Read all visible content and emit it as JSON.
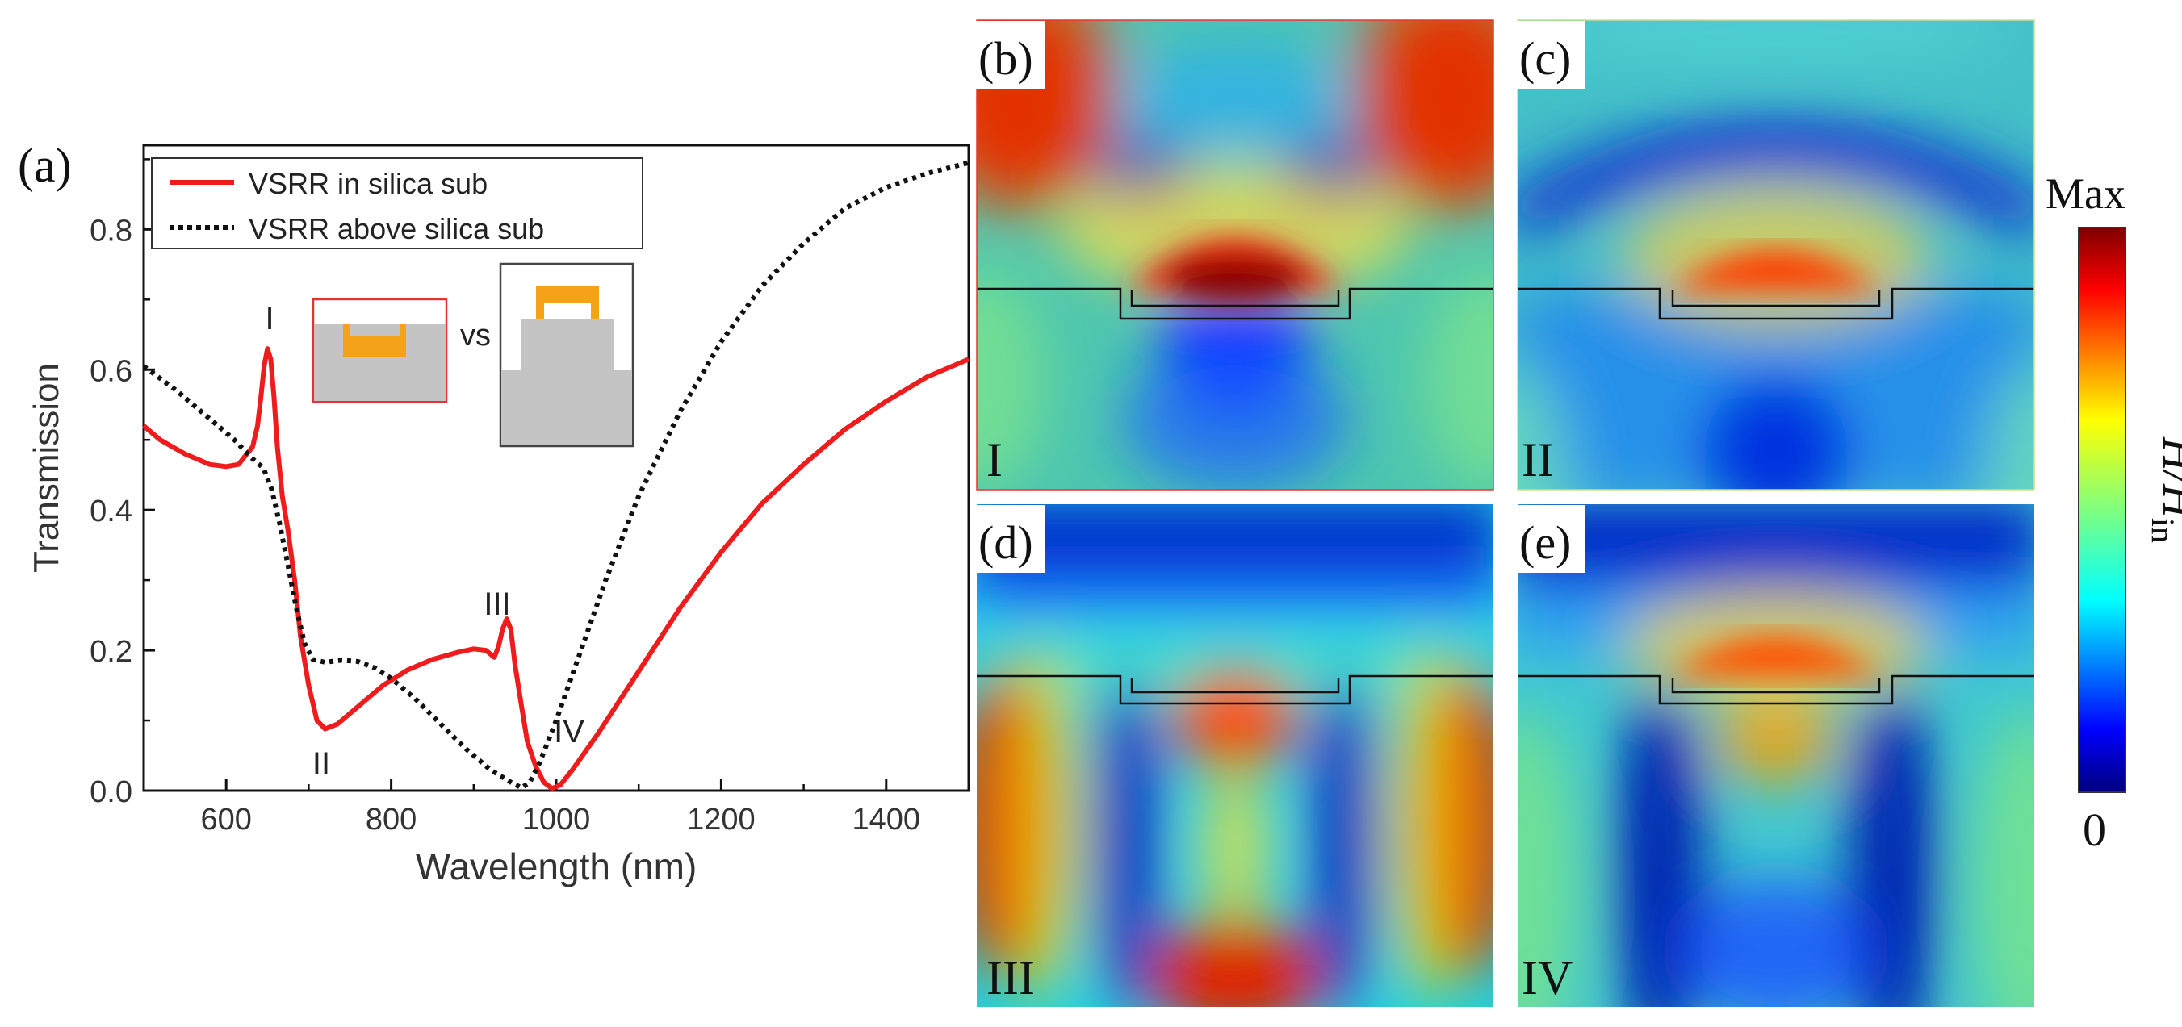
{
  "chart_data": [
    {
      "panel": "(a)",
      "type": "line",
      "xlabel": "Wavelength (nm)",
      "ylabel": "Transmission",
      "xlim": [
        500,
        1500
      ],
      "ylim": [
        0,
        0.92
      ],
      "xticks": [
        "600",
        "800",
        "1000",
        "1200",
        "1400"
      ],
      "yticks": [
        "0.0",
        "0.2",
        "0.4",
        "0.6",
        "0.8"
      ],
      "legend_position": "top",
      "series": [
        {
          "name": "VSRR in silica sub",
          "color": "#ee1c1c",
          "style": "solid",
          "points": [
            [
              500,
              0.52
            ],
            [
              520,
              0.5
            ],
            [
              550,
              0.48
            ],
            [
              580,
              0.465
            ],
            [
              600,
              0.462
            ],
            [
              615,
              0.465
            ],
            [
              625,
              0.48
            ],
            [
              632,
              0.49
            ],
            [
              638,
              0.52
            ],
            [
              642,
              0.56
            ],
            [
              646,
              0.605
            ],
            [
              650,
              0.63
            ],
            [
              654,
              0.615
            ],
            [
              658,
              0.56
            ],
            [
              662,
              0.49
            ],
            [
              668,
              0.42
            ],
            [
              675,
              0.37
            ],
            [
              683,
              0.3
            ],
            [
              690,
              0.22
            ],
            [
              700,
              0.15
            ],
            [
              710,
              0.1
            ],
            [
              720,
              0.088
            ],
            [
              735,
              0.095
            ],
            [
              760,
              0.12
            ],
            [
              790,
              0.15
            ],
            [
              820,
              0.172
            ],
            [
              850,
              0.187
            ],
            [
              880,
              0.197
            ],
            [
              900,
              0.202
            ],
            [
              915,
              0.2
            ],
            [
              925,
              0.19
            ],
            [
              930,
              0.205
            ],
            [
              935,
              0.23
            ],
            [
              940,
              0.245
            ],
            [
              945,
              0.23
            ],
            [
              950,
              0.18
            ],
            [
              958,
              0.12
            ],
            [
              965,
              0.07
            ],
            [
              975,
              0.035
            ],
            [
              985,
              0.012
            ],
            [
              995,
              0.003
            ],
            [
              1005,
              0.008
            ],
            [
              1020,
              0.03
            ],
            [
              1050,
              0.08
            ],
            [
              1100,
              0.17
            ],
            [
              1150,
              0.26
            ],
            [
              1200,
              0.34
            ],
            [
              1250,
              0.41
            ],
            [
              1300,
              0.465
            ],
            [
              1350,
              0.515
            ],
            [
              1400,
              0.555
            ],
            [
              1450,
              0.59
            ],
            [
              1500,
              0.615
            ]
          ]
        },
        {
          "name": "VSRR above silica sub",
          "color": "#111111",
          "style": "dotted",
          "points": [
            [
              500,
              0.605
            ],
            [
              540,
              0.57
            ],
            [
              580,
              0.53
            ],
            [
              610,
              0.5
            ],
            [
              630,
              0.475
            ],
            [
              645,
              0.46
            ],
            [
              655,
              0.43
            ],
            [
              665,
              0.38
            ],
            [
              675,
              0.32
            ],
            [
              685,
              0.26
            ],
            [
              695,
              0.21
            ],
            [
              705,
              0.187
            ],
            [
              720,
              0.183
            ],
            [
              740,
              0.186
            ],
            [
              760,
              0.184
            ],
            [
              780,
              0.175
            ],
            [
              800,
              0.16
            ],
            [
              830,
              0.13
            ],
            [
              860,
              0.095
            ],
            [
              890,
              0.06
            ],
            [
              920,
              0.03
            ],
            [
              945,
              0.012
            ],
            [
              958,
              0.004
            ],
            [
              968,
              0.012
            ],
            [
              980,
              0.04
            ],
            [
              1000,
              0.1
            ],
            [
              1030,
              0.2
            ],
            [
              1060,
              0.3
            ],
            [
              1100,
              0.42
            ],
            [
              1150,
              0.54
            ],
            [
              1200,
              0.64
            ],
            [
              1250,
              0.72
            ],
            [
              1300,
              0.78
            ],
            [
              1350,
              0.83
            ],
            [
              1400,
              0.86
            ],
            [
              1450,
              0.88
            ],
            [
              1500,
              0.895
            ]
          ]
        }
      ],
      "annotations": [
        "I",
        "II",
        "III",
        "IV"
      ],
      "inset_text": "vs"
    },
    {
      "panel": "(b)",
      "type": "heatmap",
      "mode_label": "I",
      "description_colormap": "jet"
    },
    {
      "panel": "(c)",
      "type": "heatmap",
      "mode_label": "II"
    },
    {
      "panel": "(d)",
      "type": "heatmap",
      "mode_label": "III"
    },
    {
      "panel": "(e)",
      "type": "heatmap",
      "mode_label": "IV"
    }
  ],
  "colorbar": {
    "max_label": "Max",
    "min_label": "0",
    "title_main": "H/H",
    "title_sub": "in"
  },
  "panel_labels": {
    "a": "(a)",
    "b": "(b)",
    "c": "(c)",
    "d": "(d)",
    "e": "(e)"
  },
  "colors": {
    "curve_red": "#ee1c1c",
    "curve_black": "#111111",
    "gold": "#f5a11a",
    "substrate_gray": "#c4c4c4"
  }
}
